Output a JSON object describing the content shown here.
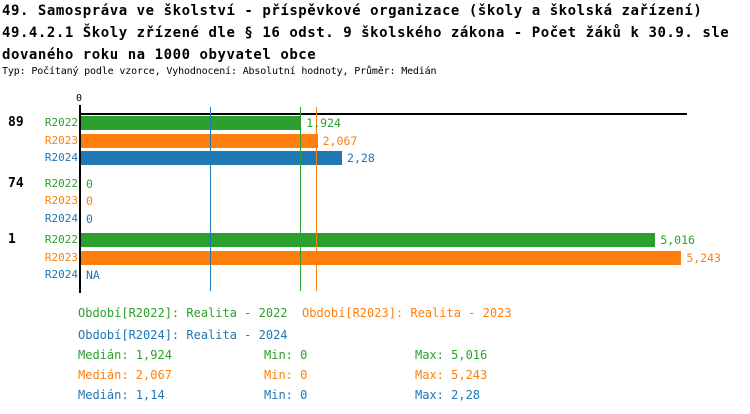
{
  "title": {
    "line1": "49. Samospráva ve školství - příspěvkové organizace (školy a školská zařízení)",
    "line2": "49.4.2.1 Školy zřízené dle § 16 odst. 9 školského zákona - Počet žáků k 30.9. sle",
    "line3": "dovaného roku na 1000 obyvatel obce",
    "subtitle": "Typ: Počítaný podle vzorce, Vyhodnocení: Absolutní hodnoty, Průměr: Medián"
  },
  "colors": {
    "r2022": "#2ca02c",
    "r2023": "#ff7f0e",
    "r2024": "#1f77b4",
    "axis": "#000000",
    "background": "#ffffff"
  },
  "chart_data": {
    "type": "bar",
    "orientation": "horizontal",
    "title": "49.4.2.1 Školy zřízené dle § 16 odst. 9 školského zákona - Počet žáků k 30.9. sledovaného roku na 1000 obyvatel obce",
    "xlabel": "",
    "ylabel": "",
    "xlim": [
      0,
      5.3
    ],
    "x_axis": {
      "ticks": [
        "0"
      ],
      "tick_values": [
        0
      ]
    },
    "grid": false,
    "legend_position": "bottom",
    "categories": [
      "89",
      "74",
      "1"
    ],
    "series": [
      {
        "name": "R2022",
        "legend": "Období[R2022]: Realita - 2022",
        "color": "#2ca02c",
        "values": [
          1.924,
          0,
          5.016
        ],
        "display": [
          "1,924",
          "0",
          "5,016"
        ],
        "median": 1.924
      },
      {
        "name": "R2023",
        "legend": "Období[R2023]: Realita - 2023",
        "color": "#ff7f0e",
        "values": [
          2.067,
          0,
          5.243
        ],
        "display": [
          "2,067",
          "0",
          "5,243"
        ],
        "median": 2.067
      },
      {
        "name": "R2024",
        "legend": "Období[R2024]: Realita - 2024",
        "color": "#1f77b4",
        "values": [
          2.28,
          0,
          null
        ],
        "display": [
          "2,28",
          "0",
          "NA"
        ],
        "median": 1.14
      }
    ],
    "median_lines": [
      {
        "series": "R2022",
        "color": "#2ca02c",
        "value": 1.924
      },
      {
        "series": "R2023",
        "color": "#ff7f0e",
        "value": 2.067
      },
      {
        "series": "R2024",
        "color": "#1f77b4",
        "value": 1.14
      }
    ]
  },
  "legend": {
    "items": [
      {
        "text": "Období[R2022]: Realita - 2022",
        "color": "#2ca02c"
      },
      {
        "text": "Období[R2023]: Realita - 2023",
        "color": "#ff7f0e"
      },
      {
        "text": "Období[R2024]: Realita - 2024",
        "color": "#1f77b4"
      }
    ]
  },
  "stats": {
    "rows": [
      {
        "median": "Medián: 1,924",
        "min": "Min: 0",
        "max": "Max: 5,016",
        "color": "#2ca02c"
      },
      {
        "median": "Medián: 2,067",
        "min": "Min: 0",
        "max": "Max: 5,243",
        "color": "#ff7f0e"
      },
      {
        "median": "Medián: 1,14",
        "min": "Min: 0",
        "max": "Max: 2,28",
        "color": "#1f77b4"
      }
    ]
  }
}
